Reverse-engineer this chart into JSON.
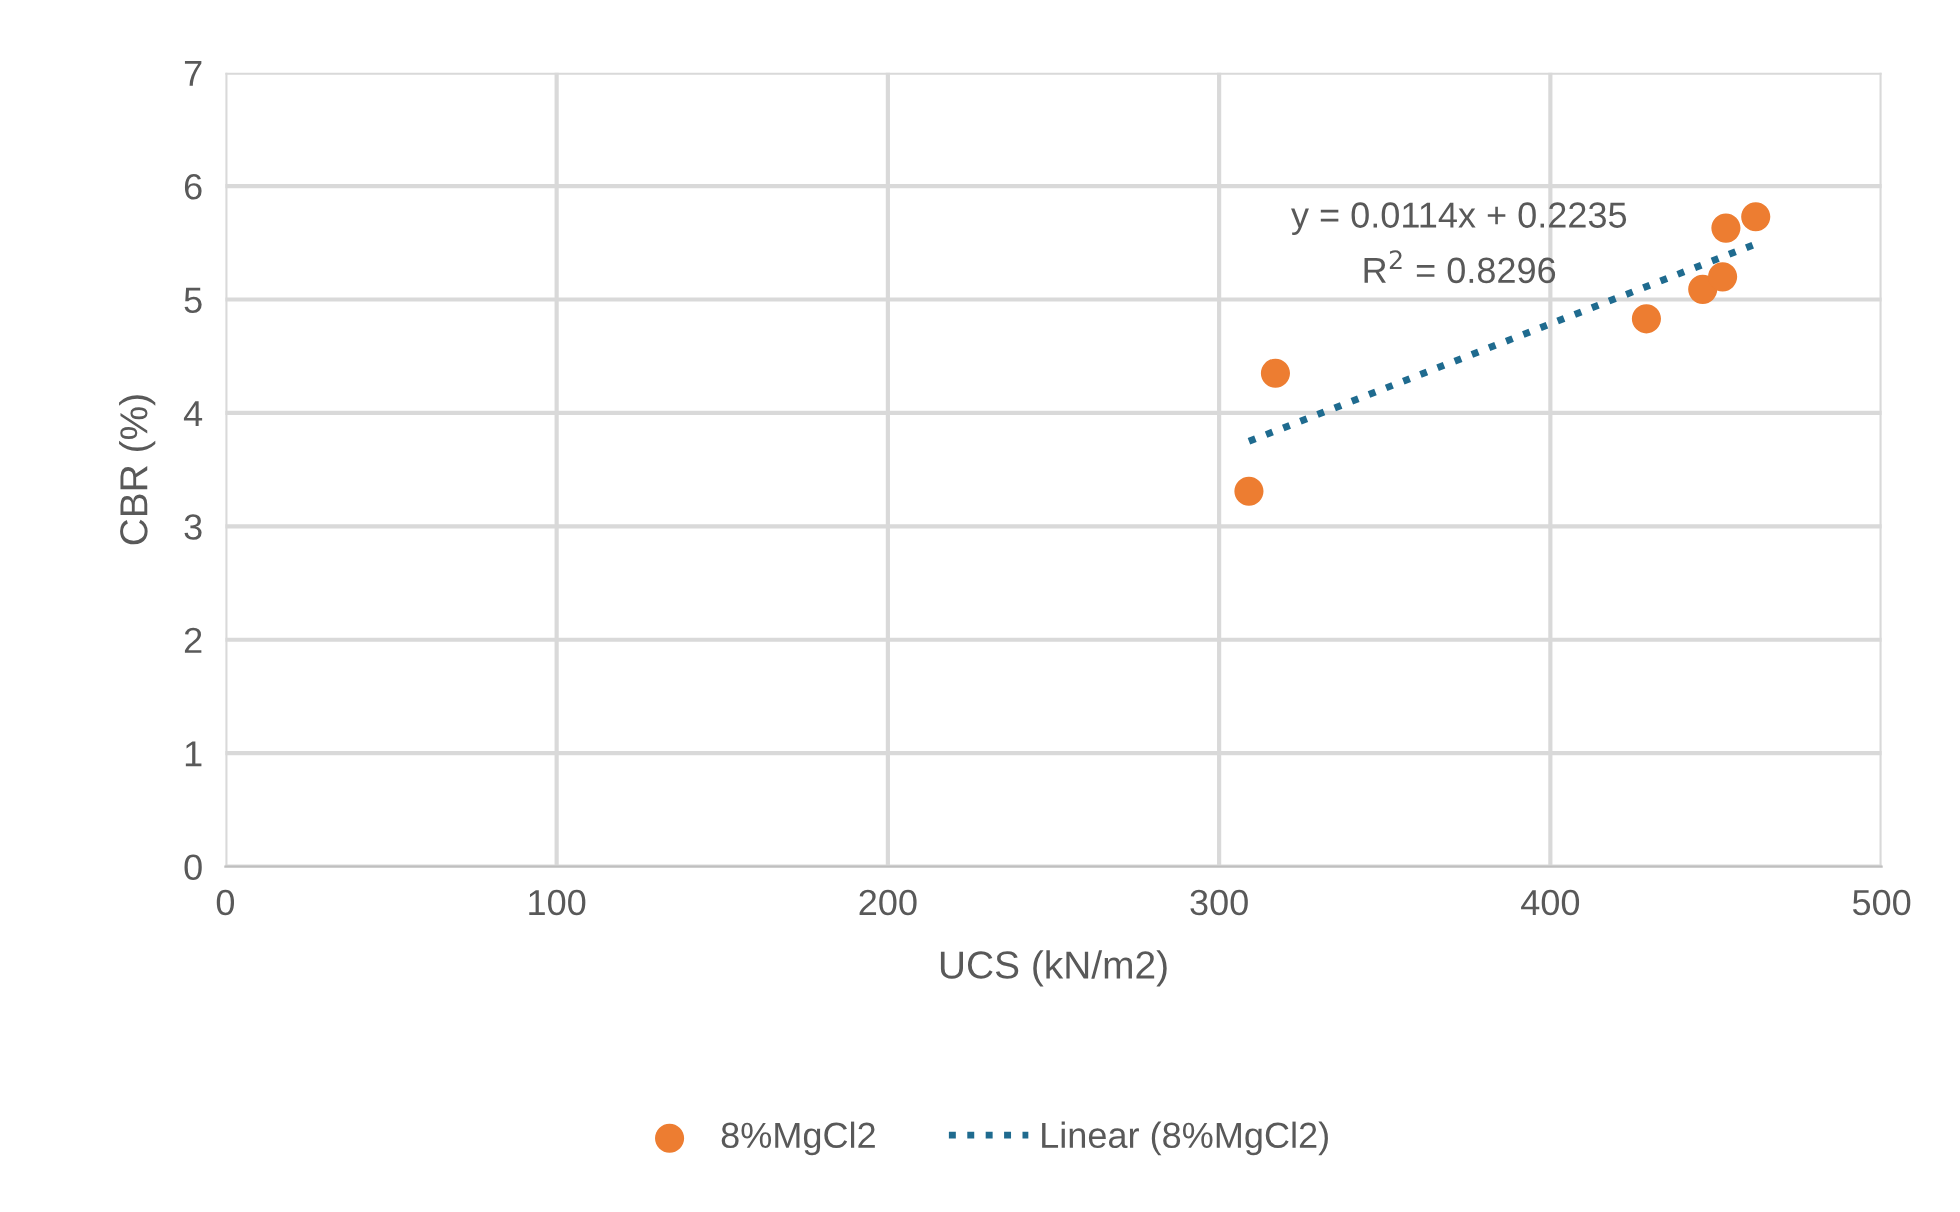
{
  "chart_data": {
    "type": "scatter",
    "xlabel": "UCS (kN/m2)",
    "ylabel": "CBR (%)",
    "xlim": [
      0,
      500
    ],
    "xticks": [
      0,
      100,
      200,
      300,
      400,
      500
    ],
    "ylim": [
      0,
      7
    ],
    "yticks": [
      0,
      1,
      2,
      3,
      4,
      5,
      6,
      7
    ],
    "grid": true,
    "legend": "bottom",
    "series": [
      {
        "name": "8%MgCl2",
        "marker": "circle",
        "color": "#ed7d31",
        "x": [
          309,
          317,
          429,
          446,
          452,
          453,
          462
        ],
        "values": [
          3.31,
          4.35,
          4.83,
          5.09,
          5.2,
          5.63,
          5.73
        ]
      },
      {
        "name": "Linear (8%MgCl2)",
        "type": "line",
        "line_style": "dotted",
        "marker": "none",
        "color": "#1f6b8f",
        "x": [
          309,
          462
        ],
        "values": [
          3.75,
          5.49
        ]
      }
    ],
    "annotations": [
      "y = 0.0114x + 0.2235",
      "R$^{2}$ = 0.8296"
    ]
  }
}
